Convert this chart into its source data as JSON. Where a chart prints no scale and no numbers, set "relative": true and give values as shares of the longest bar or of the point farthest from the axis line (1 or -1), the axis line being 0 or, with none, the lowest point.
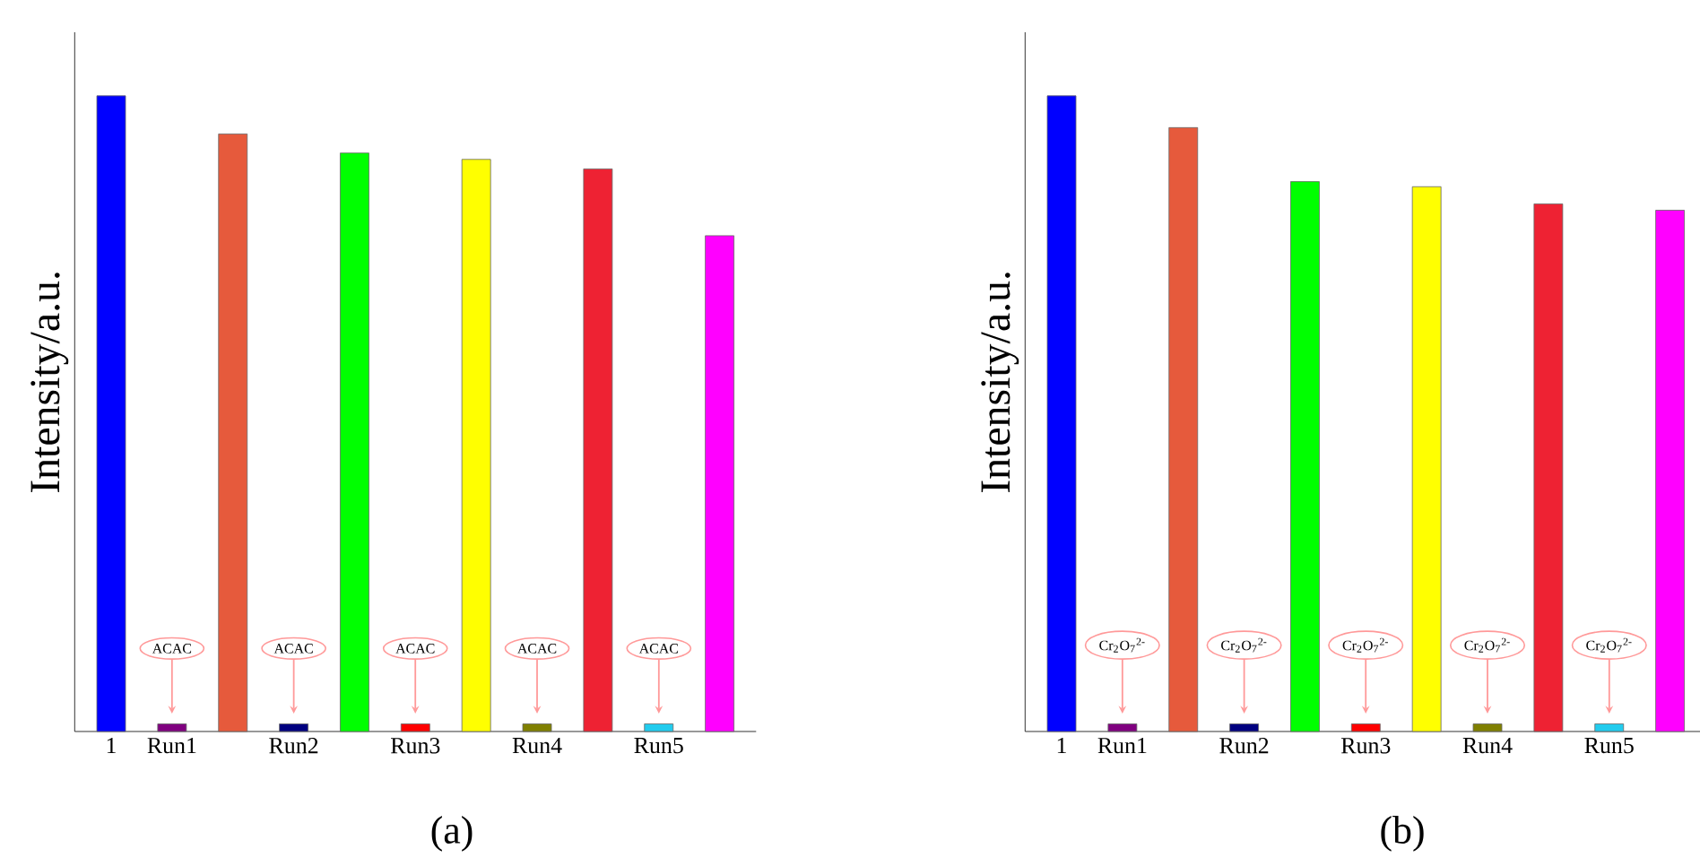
{
  "chart_data": [
    {
      "type": "bar",
      "relative": true,
      "ylabel": "Intensity/a.u.",
      "categories": [
        "1",
        "Run1",
        null,
        "Run2",
        null,
        "Run3",
        null,
        "Run4",
        null,
        "Run5",
        null
      ],
      "values": [
        1,
        0.012,
        0.94,
        0.012,
        0.91,
        0.012,
        0.9,
        0.012,
        0.885,
        0.012,
        0.78
      ],
      "colors": [
        "#0000ff",
        "#800080",
        "#e65a3c",
        "#000080",
        "#00ff00",
        "#ff0000",
        "#ffff00",
        "#808000",
        "#ee2233",
        "#22ccee",
        "#ff00ff"
      ],
      "annotations": [
        "ACAC",
        "ACAC",
        "ACAC",
        "ACAC",
        "ACAC",
        "(a)"
      ]
    },
    {
      "type": "bar",
      "relative": true,
      "ylabel": "Intensity/a.u.",
      "categories": [
        "1",
        "Run1",
        null,
        "Run2",
        null,
        "Run3",
        null,
        "Run4",
        null,
        "Run5",
        null
      ],
      "values": [
        1,
        0.012,
        0.95,
        0.012,
        0.865,
        0.012,
        0.857,
        0.012,
        0.83,
        0.012,
        0.82
      ],
      "colors": [
        "#0000ff",
        "#800080",
        "#e65a3c",
        "#000080",
        "#00ff00",
        "#ff0000",
        "#ffff00",
        "#808000",
        "#ee2233",
        "#22ccee",
        "#ff00ff"
      ],
      "annotations": [
        "Cr$_{2}$O$_{7}$$^{2-}$",
        "Cr$_{2}$O$_{7}$$^{2-}$",
        "Cr$_{2}$O$_{7}$$^{2-}$",
        "Cr$_{2}$O$_{7}$$^{2-}$",
        "Cr$_{2}$O$_{7}$$^{2-}$",
        "(b)"
      ]
    }
  ]
}
